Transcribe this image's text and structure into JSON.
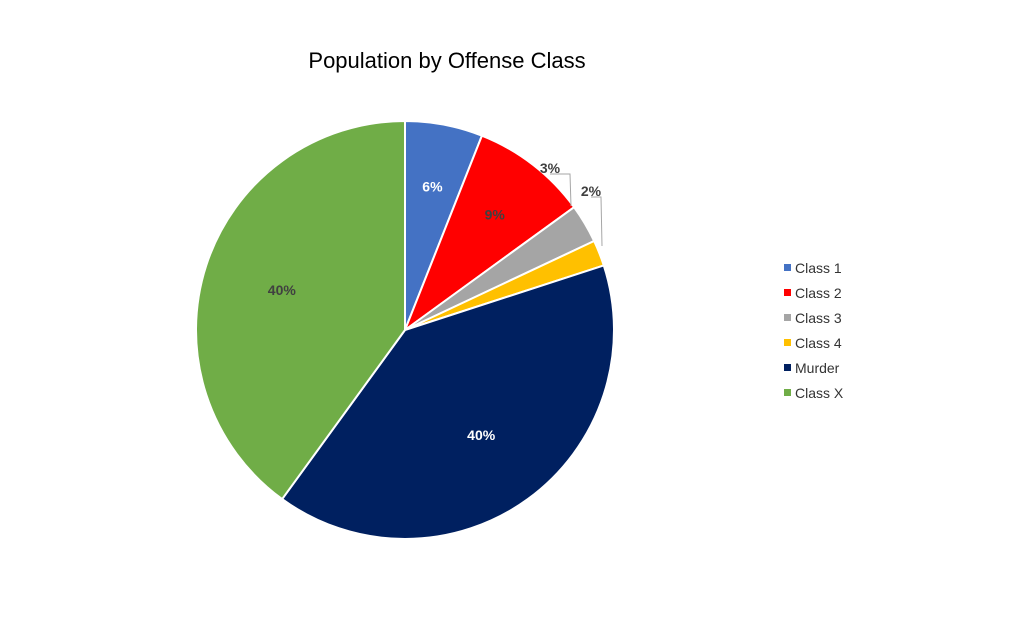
{
  "chart_data": {
    "type": "pie",
    "title": "Population by Offense Class",
    "legend_position": "right",
    "slices": [
      {
        "name": "Class 1",
        "value": 6,
        "label": "6%",
        "color": "#4472C4",
        "label_color": "#FFFFFF",
        "label_outside": false
      },
      {
        "name": "Class 2",
        "value": 9,
        "label": "9%",
        "color": "#FF0000",
        "label_color": "#404040",
        "label_outside": false
      },
      {
        "name": "Class 3",
        "value": 3,
        "label": "3%",
        "color": "#A5A5A5",
        "label_color": "#404040",
        "label_outside": true
      },
      {
        "name": "Class 4",
        "value": 2,
        "label": "2%",
        "color": "#FFC000",
        "label_color": "#404040",
        "label_outside": true
      },
      {
        "name": "Murder",
        "value": 40,
        "label": "40%",
        "color": "#002060",
        "label_color": "#FFFFFF",
        "label_outside": false
      },
      {
        "name": "Class X",
        "value": 40,
        "label": "40%",
        "color": "#70AD47",
        "label_color": "#404040",
        "label_outside": false
      }
    ]
  }
}
